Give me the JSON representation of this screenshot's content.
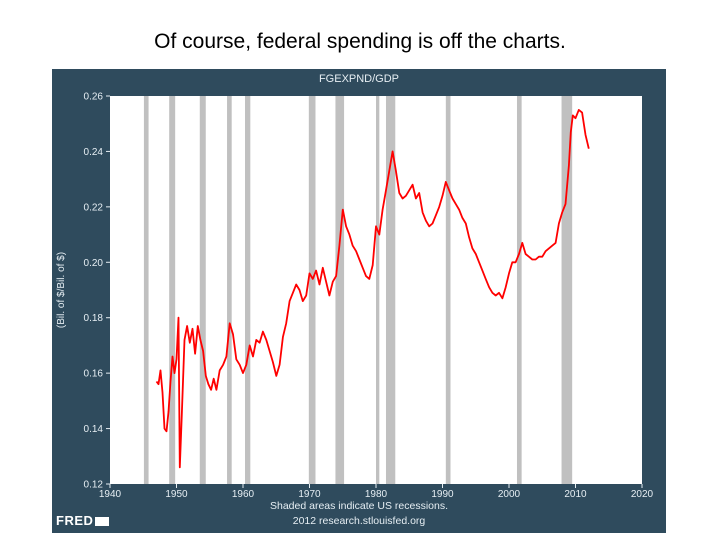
{
  "slide": {
    "title": "Of course, federal spending is off the charts."
  },
  "colors": {
    "panel": "#2f4b5d",
    "plot_bg": "#ffffff",
    "line": "#ff0000",
    "recession": "#c0c0c0"
  },
  "chart_data": {
    "type": "line",
    "title": "FGEXPND/GDP",
    "xlabel": "",
    "ylabel": "(Bil. of $/Bil. of $)",
    "xlim": [
      1940,
      2020
    ],
    "ylim": [
      0.12,
      0.26
    ],
    "x_ticks": [
      1940,
      1950,
      1960,
      1970,
      1980,
      1990,
      2000,
      2010,
      2020
    ],
    "y_ticks": [
      0.12,
      0.14,
      0.16,
      0.18,
      0.2,
      0.22,
      0.24,
      0.26
    ],
    "y_tick_labels": [
      "0.12",
      "0.14",
      "0.16",
      "0.18",
      "0.20",
      "0.22",
      "0.24",
      "0.26"
    ],
    "grid": false,
    "recessions": [
      [
        1945.1,
        1945.8
      ],
      [
        1948.9,
        1949.8
      ],
      [
        1953.5,
        1954.4
      ],
      [
        1957.6,
        1958.3
      ],
      [
        1960.3,
        1961.1
      ],
      [
        1969.9,
        1970.9
      ],
      [
        1973.9,
        1975.2
      ],
      [
        1980.0,
        1980.5
      ],
      [
        1981.5,
        1982.9
      ],
      [
        1990.5,
        1991.2
      ],
      [
        2001.2,
        2001.9
      ],
      [
        2007.9,
        2009.5
      ]
    ],
    "series": [
      {
        "name": "FGEXPND/GDP",
        "x": [
          1947.0,
          1947.3,
          1947.6,
          1947.9,
          1948.2,
          1948.5,
          1948.8,
          1949.1,
          1949.4,
          1949.7,
          1950.0,
          1950.3,
          1950.5,
          1950.8,
          1951.2,
          1951.6,
          1952.0,
          1952.4,
          1952.8,
          1953.2,
          1953.6,
          1954.0,
          1954.4,
          1954.8,
          1955.2,
          1955.6,
          1956.0,
          1956.5,
          1957.0,
          1957.5,
          1958.0,
          1958.5,
          1959.0,
          1959.5,
          1960.0,
          1960.5,
          1961.0,
          1961.5,
          1962.0,
          1962.5,
          1963.0,
          1963.5,
          1964.0,
          1964.5,
          1965.0,
          1965.5,
          1966.0,
          1966.5,
          1967.0,
          1967.5,
          1968.0,
          1968.5,
          1969.0,
          1969.5,
          1970.0,
          1970.5,
          1971.0,
          1971.5,
          1972.0,
          1972.5,
          1973.0,
          1973.5,
          1974.0,
          1974.5,
          1975.0,
          1975.5,
          1976.0,
          1976.5,
          1977.0,
          1977.5,
          1978.0,
          1978.5,
          1979.0,
          1979.5,
          1980.0,
          1980.5,
          1981.0,
          1981.5,
          1982.0,
          1982.5,
          1983.0,
          1983.5,
          1984.0,
          1984.5,
          1985.0,
          1985.5,
          1986.0,
          1986.5,
          1987.0,
          1987.5,
          1988.0,
          1988.5,
          1989.0,
          1989.5,
          1990.0,
          1990.5,
          1991.0,
          1991.5,
          1992.0,
          1992.5,
          1993.0,
          1993.5,
          1994.0,
          1994.5,
          1995.0,
          1995.5,
          1996.0,
          1996.5,
          1997.0,
          1997.5,
          1998.0,
          1998.5,
          1999.0,
          1999.5,
          2000.0,
          2000.5,
          2001.0,
          2001.5,
          2002.0,
          2002.5,
          2003.0,
          2003.5,
          2004.0,
          2004.5,
          2005.0,
          2005.5,
          2006.0,
          2006.5,
          2007.0,
          2007.5,
          2008.0,
          2008.5,
          2009.0,
          2009.3,
          2009.6,
          2010.0,
          2010.5,
          2011.0,
          2011.5,
          2012.0
        ],
        "y": [
          0.157,
          0.156,
          0.161,
          0.153,
          0.14,
          0.139,
          0.146,
          0.157,
          0.166,
          0.16,
          0.165,
          0.18,
          0.126,
          0.145,
          0.172,
          0.177,
          0.171,
          0.176,
          0.167,
          0.177,
          0.172,
          0.168,
          0.159,
          0.156,
          0.154,
          0.158,
          0.154,
          0.161,
          0.163,
          0.166,
          0.178,
          0.174,
          0.165,
          0.163,
          0.16,
          0.163,
          0.17,
          0.166,
          0.172,
          0.171,
          0.175,
          0.172,
          0.168,
          0.164,
          0.159,
          0.163,
          0.173,
          0.178,
          0.186,
          0.189,
          0.192,
          0.19,
          0.186,
          0.188,
          0.196,
          0.194,
          0.197,
          0.192,
          0.198,
          0.193,
          0.188,
          0.193,
          0.195,
          0.206,
          0.219,
          0.213,
          0.21,
          0.206,
          0.204,
          0.201,
          0.198,
          0.195,
          0.194,
          0.199,
          0.213,
          0.21,
          0.219,
          0.226,
          0.233,
          0.24,
          0.233,
          0.225,
          0.223,
          0.224,
          0.226,
          0.228,
          0.223,
          0.225,
          0.218,
          0.215,
          0.213,
          0.214,
          0.217,
          0.22,
          0.224,
          0.229,
          0.226,
          0.223,
          0.221,
          0.219,
          0.216,
          0.214,
          0.209,
          0.205,
          0.203,
          0.2,
          0.197,
          0.194,
          0.191,
          0.189,
          0.188,
          0.189,
          0.187,
          0.191,
          0.196,
          0.2,
          0.2,
          0.203,
          0.207,
          0.203,
          0.202,
          0.201,
          0.201,
          0.202,
          0.202,
          0.204,
          0.205,
          0.206,
          0.207,
          0.214,
          0.218,
          0.221,
          0.235,
          0.247,
          0.253,
          0.252,
          0.255,
          0.254,
          0.246,
          0.241
        ]
      }
    ]
  },
  "footer": {
    "note_line1": "Shaded areas indicate US recessions.",
    "note_line2": "2012 research.stlouisfed.org",
    "logo_text": "FRED"
  }
}
